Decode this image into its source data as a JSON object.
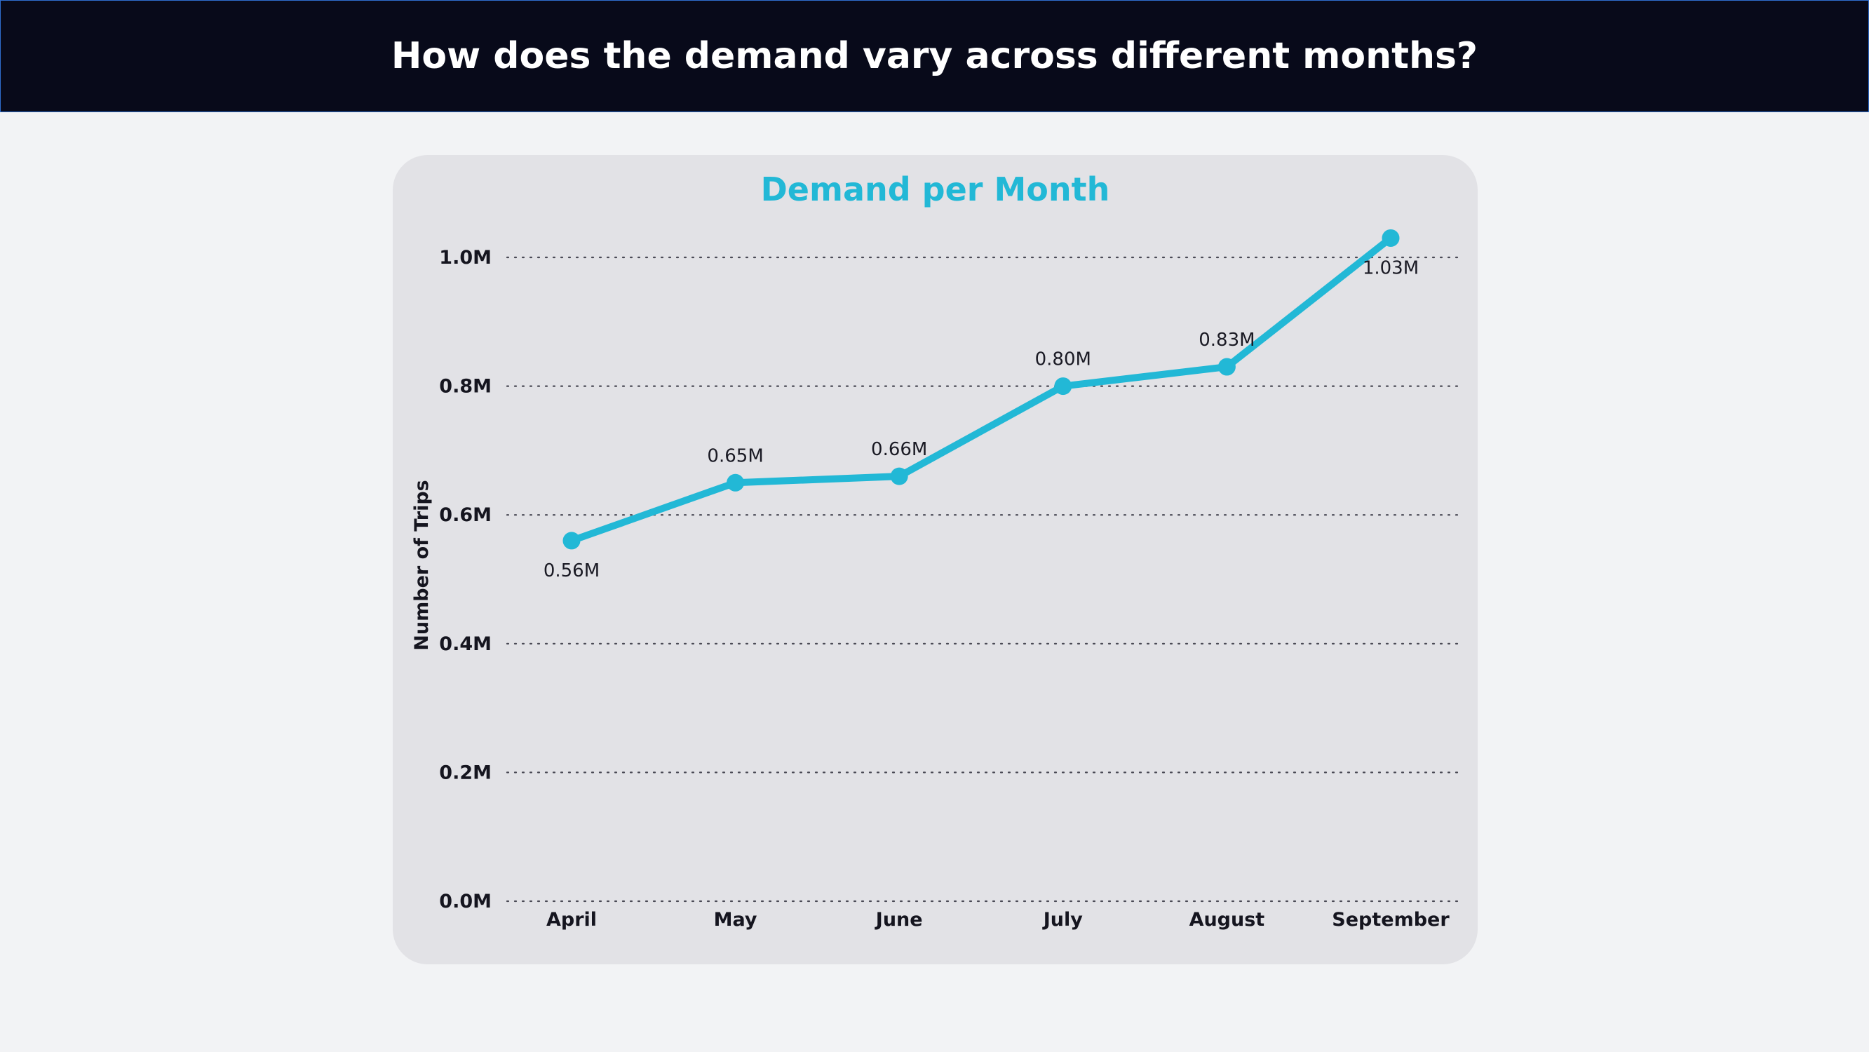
{
  "header": {
    "title": "How does the demand vary across different months?"
  },
  "colors": {
    "header_bg": "#080a1a",
    "page_bg": "#f2f3f5",
    "card_bg": "#e2e2e6",
    "accent": "#22b8d6"
  },
  "chart_data": {
    "type": "line",
    "title": "Demand per Month",
    "xlabel": "",
    "ylabel": "Number of Trips",
    "categories": [
      "April",
      "May",
      "June",
      "July",
      "August",
      "September"
    ],
    "series": [
      {
        "values": [
          0.56,
          0.65,
          0.66,
          0.8,
          0.83,
          1.03
        ],
        "labels": [
          "0.56M",
          "0.65M",
          "0.66M",
          "0.80M",
          "0.83M",
          "1.03M"
        ]
      }
    ],
    "ylim": [
      0,
      1.0
    ],
    "yticks": [
      {
        "value": 0.0,
        "label": "0.0M"
      },
      {
        "value": 0.2,
        "label": "0.2M"
      },
      {
        "value": 0.4,
        "label": "0.4M"
      },
      {
        "value": 0.6,
        "label": "0.6M"
      },
      {
        "value": 0.8,
        "label": "0.8M"
      },
      {
        "value": 1.0,
        "label": "1.0M"
      }
    ],
    "grid": true,
    "grid_style": "dotted",
    "units": "millions of trips"
  }
}
